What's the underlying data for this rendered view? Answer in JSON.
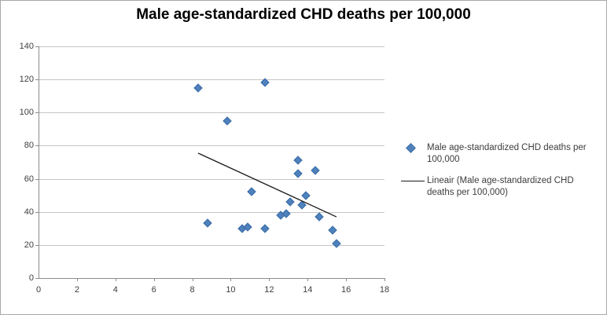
{
  "chart_data": {
    "type": "scatter",
    "title": "Male age-standardized CHD deaths per 100,000",
    "xlabel": "",
    "ylabel": "",
    "xlim": [
      0,
      18
    ],
    "ylim": [
      0,
      140
    ],
    "xticks": [
      0,
      2,
      4,
      6,
      8,
      10,
      12,
      14,
      16,
      18
    ],
    "yticks": [
      0,
      20,
      40,
      60,
      80,
      100,
      120,
      140
    ],
    "grid": "horizontal",
    "legend_position": "right",
    "marker": {
      "shape": "diamond",
      "color": "#4f81bd"
    },
    "series": [
      {
        "name": "Male age-standardized CHD deaths per 100,000",
        "points": [
          [
            8.3,
            115
          ],
          [
            8.8,
            33
          ],
          [
            9.8,
            95
          ],
          [
            10.6,
            30
          ],
          [
            10.9,
            31
          ],
          [
            11.1,
            52
          ],
          [
            11.8,
            118
          ],
          [
            11.8,
            30
          ],
          [
            12.6,
            38
          ],
          [
            12.9,
            39
          ],
          [
            13.1,
            46
          ],
          [
            13.5,
            71
          ],
          [
            13.5,
            63
          ],
          [
            13.7,
            44
          ],
          [
            13.9,
            50
          ],
          [
            14.4,
            65
          ],
          [
            14.6,
            37
          ],
          [
            15.3,
            29
          ],
          [
            15.5,
            21
          ]
        ]
      }
    ],
    "trendline": {
      "name": "Lineair (Male age-standardized CHD deaths per 100,000)",
      "color": "#1a1a1a",
      "x1": 8.3,
      "y1": 75.5,
      "x2": 15.5,
      "y2": 37
    }
  },
  "legend": {
    "series_label": "Male age-standardized  CHD deaths per 100,000",
    "trendline_label": "Lineair (Male age-standardized CHD deaths per 100,000)"
  }
}
